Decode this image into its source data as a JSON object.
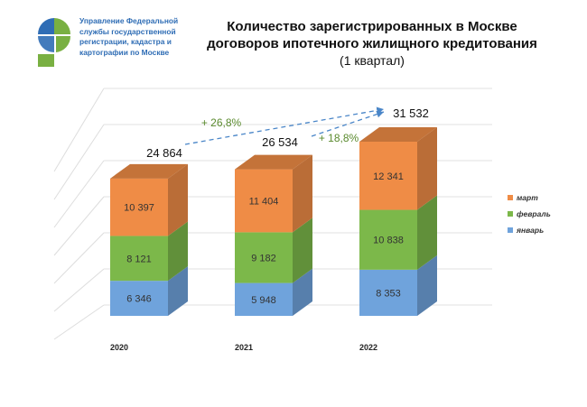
{
  "logo": {
    "lines": [
      "Управление Федеральной",
      "службы государственной",
      "регистрации, кадастра и",
      "картографии по Москве"
    ]
  },
  "title": {
    "line1": "Количество зарегистрированных  в Москве",
    "line2": "договоров ипотечного жилищного кредитования",
    "line3": "(1 квартал)"
  },
  "colors": {
    "mart": "#ef8c46",
    "fevral": "#7cb84a",
    "yanvar": "#6fa3dc",
    "growth": "#5a8a2e",
    "dashed": "#4a86c8"
  },
  "chart_data": {
    "type": "bar",
    "stacked": true,
    "categories": [
      "2020",
      "2021",
      "2022"
    ],
    "series": [
      {
        "name": "январь",
        "values": [
          6346,
          5948,
          8353
        ],
        "labels": [
          "6 346",
          "5 948",
          "8 353"
        ]
      },
      {
        "name": "февраль",
        "values": [
          8121,
          9182,
          10838
        ],
        "labels": [
          "8 121",
          "9 182",
          "10 838"
        ]
      },
      {
        "name": "март",
        "values": [
          10397,
          11404,
          12341
        ],
        "labels": [
          "10 397",
          "11 404",
          "12 341"
        ]
      }
    ],
    "totals": [
      24864,
      26534,
      31532
    ],
    "total_labels": [
      "24 864",
      "26 534",
      "31 532"
    ],
    "growth_annotations": [
      "+ 26,8%",
      "+ 18,8%"
    ],
    "legend": [
      "март",
      "февраль",
      "январь"
    ],
    "legend_position": "right",
    "grid": true
  }
}
